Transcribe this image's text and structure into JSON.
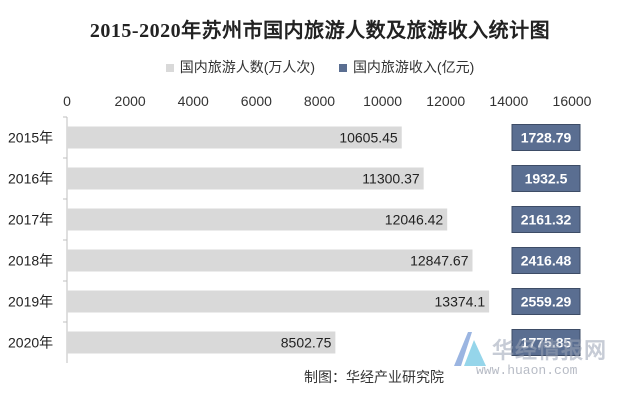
{
  "chart_data": {
    "type": "bar",
    "orientation": "horizontal",
    "title": "2015-2020年苏州市国内旅游人数及旅游收入统计图",
    "categories": [
      "2015年",
      "2016年",
      "2017年",
      "2018年",
      "2019年",
      "2020年"
    ],
    "series": [
      {
        "name": "国内旅游人数(万人次)",
        "values": [
          10605.45,
          11300.37,
          12046.42,
          12847.67,
          13374.1,
          8502.75
        ],
        "color": "#d9d9d9",
        "label_color": "#222222"
      },
      {
        "name": "国内旅游收入(亿元)",
        "values": [
          1728.79,
          1932.5,
          2161.32,
          2416.48,
          2559.29,
          1775.85
        ],
        "color": "#5a6e91",
        "label_color": "#ffffff"
      }
    ],
    "value_labels": {
      "国内旅游人数(万人次)": [
        "10605.45",
        "11300.37",
        "12046.42",
        "12847.67",
        "13374.1",
        "8502.75"
      ],
      "国内旅游收入(亿元)": [
        "1728.79",
        "1932.5",
        "2161.32",
        "2416.48",
        "2559.29",
        "1775.85"
      ]
    },
    "x_ticks": [
      "0",
      "2000",
      "4000",
      "6000",
      "8000",
      "10000",
      "12000",
      "14000",
      "16000"
    ],
    "xlim": [
      0,
      16000
    ],
    "axis_position": "top",
    "legend_position": "top",
    "grid": false
  },
  "footer": {
    "source": "制图：华经产业研究院"
  },
  "watermark": {
    "name": "华经情报网",
    "url": "www.huaon.com"
  }
}
